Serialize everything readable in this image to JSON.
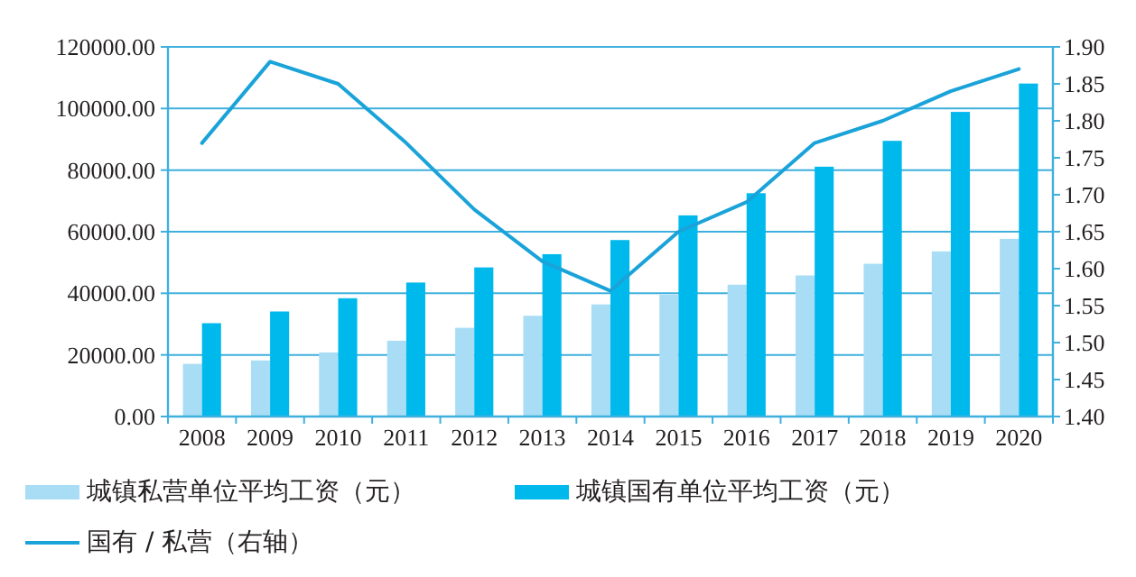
{
  "chart_data": {
    "type": "bar",
    "categories": [
      "2008",
      "2009",
      "2010",
      "2011",
      "2012",
      "2013",
      "2014",
      "2015",
      "2016",
      "2017",
      "2018",
      "2019",
      "2020"
    ],
    "series": [
      {
        "name": "城镇私营单位平均工资（元）",
        "color": "#a8ddf5",
        "values": [
          17100,
          18200,
          20800,
          24600,
          28800,
          32700,
          36400,
          39600,
          42800,
          45800,
          49600,
          53600,
          57700
        ]
      },
      {
        "name": "城镇国有单位平均工资（元）",
        "color": "#00b9ec",
        "values": [
          30300,
          34100,
          38400,
          43500,
          48400,
          52700,
          57300,
          65300,
          72500,
          81100,
          89500,
          98900,
          108100
        ]
      },
      {
        "name": "国有 / 私营（右轴）",
        "type": "line",
        "axis": "y2",
        "color": "#1aa3d9",
        "values": [
          1.77,
          1.88,
          1.85,
          1.77,
          1.68,
          1.61,
          1.57,
          1.65,
          1.69,
          1.77,
          1.8,
          1.84,
          1.87
        ]
      }
    ],
    "ylim": [
      0,
      120000
    ],
    "yticks": [
      {
        "value": 0,
        "label": "0.00"
      },
      {
        "value": 20000,
        "label": "20000.00"
      },
      {
        "value": 40000,
        "label": "40000.00"
      },
      {
        "value": 60000,
        "label": "60000.00"
      },
      {
        "value": 80000,
        "label": "80000.00"
      },
      {
        "value": 100000,
        "label": "100000.00"
      },
      {
        "value": 120000,
        "label": "120000.00"
      }
    ],
    "y2lim": [
      1.4,
      1.9
    ],
    "y2ticks": [
      {
        "value": 1.4,
        "label": "1.40"
      },
      {
        "value": 1.45,
        "label": "1.45"
      },
      {
        "value": 1.5,
        "label": "1.50"
      },
      {
        "value": 1.55,
        "label": "1.55"
      },
      {
        "value": 1.6,
        "label": "1.60"
      },
      {
        "value": 1.65,
        "label": "1.65"
      },
      {
        "value": 1.7,
        "label": "1.70"
      },
      {
        "value": 1.75,
        "label": "1.75"
      },
      {
        "value": 1.8,
        "label": "1.80"
      },
      {
        "value": 1.85,
        "label": "1.85"
      },
      {
        "value": 1.9,
        "label": "1.90"
      }
    ],
    "grid": "y",
    "legend": "bottom"
  }
}
